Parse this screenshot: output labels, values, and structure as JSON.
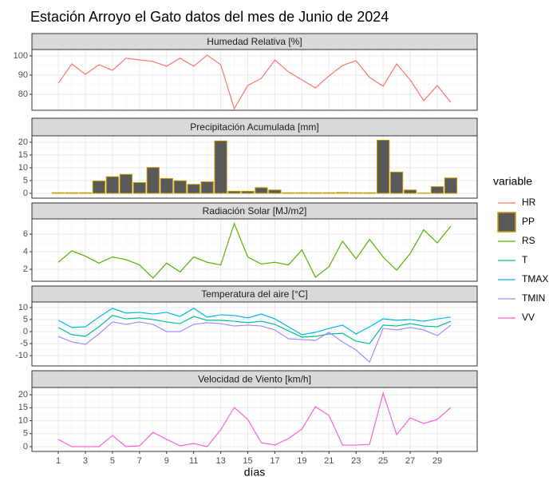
{
  "title": "Estación Arroyo el Gato datos del mes de Junio de 2024",
  "legend": {
    "title": "variable"
  },
  "chart_data": [
    {
      "type": "line",
      "title": "Humedad Relativa [%]",
      "x": [
        1,
        2,
        3,
        4,
        5,
        6,
        7,
        8,
        9,
        10,
        11,
        12,
        13,
        14,
        15,
        16,
        17,
        18,
        19,
        20,
        21,
        22,
        23,
        24,
        25,
        26,
        27,
        28,
        29,
        30
      ],
      "xlim": [
        -0.95,
        31.95
      ],
      "ylim": [
        71.7,
        103.3
      ],
      "yticks": [
        80,
        90,
        100
      ],
      "grid": true,
      "series": [
        {
          "name": "HR",
          "color": "#F8766D",
          "values": [
            85.8,
            95.8,
            90.4,
            95.4,
            92.5,
            98.8,
            97.9,
            97.1,
            94.6,
            98.8,
            94.6,
            100.4,
            95.4,
            72.5,
            84.6,
            88.3,
            97.9,
            91.7,
            87.5,
            83.3,
            89.6,
            95,
            97.5,
            88.8,
            84.2,
            95.8,
            87.5,
            76.7,
            84.6,
            75.8
          ]
        }
      ]
    },
    {
      "type": "bar",
      "title": "Precipitación Acumulada [mm]",
      "x": [
        1,
        2,
        3,
        4,
        5,
        6,
        7,
        8,
        9,
        10,
        11,
        12,
        13,
        14,
        15,
        16,
        17,
        18,
        19,
        20,
        21,
        22,
        23,
        24,
        25,
        26,
        27,
        28,
        29,
        30
      ],
      "xlim": [
        -0.95,
        31.95
      ],
      "ylim": [
        -1.9,
        22.5
      ],
      "yticks": [
        0,
        5,
        10,
        15,
        20
      ],
      "grid": true,
      "series": [
        {
          "name": "PP",
          "color": "#C49A00",
          "fill": "#595959",
          "values": [
            0.2,
            0.2,
            0.2,
            4.8,
            6.5,
            7.4,
            4.2,
            10.1,
            5.8,
            4.9,
            3.5,
            4.5,
            20.5,
            0.8,
            0.8,
            2.2,
            1.3,
            0.2,
            0.2,
            0.2,
            0.2,
            0.3,
            0.2,
            0.2,
            20.8,
            8.3,
            1.3,
            0.1,
            2.6,
            6.0
          ]
        }
      ]
    },
    {
      "type": "line",
      "title": "Radiación Solar [MJ/m2]",
      "x": [
        1,
        2,
        3,
        4,
        5,
        6,
        7,
        8,
        9,
        10,
        11,
        12,
        13,
        14,
        15,
        16,
        17,
        18,
        19,
        20,
        21,
        22,
        23,
        24,
        25,
        26,
        27,
        28,
        29,
        30
      ],
      "xlim": [
        -0.95,
        31.95
      ],
      "ylim": [
        0.64,
        7.73
      ],
      "yticks": [
        2,
        4,
        6
      ],
      "grid": true,
      "series": [
        {
          "name": "RS",
          "color": "#53B400",
          "values": [
            2.8,
            4.1,
            3.5,
            2.7,
            3.4,
            3.1,
            2.5,
            1.0,
            2.7,
            1.7,
            3.4,
            2.8,
            2.5,
            7.2,
            3.4,
            2.6,
            2.8,
            2.5,
            4.2,
            1.1,
            2.3,
            5.2,
            3.2,
            5.4,
            3.4,
            1.9,
            3.8,
            6.5,
            5.0,
            6.9
          ]
        }
      ]
    },
    {
      "type": "line",
      "title": "Temperatura del aire [°C]",
      "x": [
        1,
        2,
        3,
        4,
        5,
        6,
        7,
        8,
        9,
        10,
        11,
        12,
        13,
        14,
        15,
        16,
        17,
        18,
        19,
        20,
        21,
        22,
        23,
        24,
        25,
        26,
        27,
        28,
        29,
        30
      ],
      "xlim": [
        -0.95,
        31.95
      ],
      "ylim": [
        -14.3,
        12.3
      ],
      "yticks": [
        -10,
        -5,
        0,
        5,
        10
      ],
      "grid": true,
      "series": [
        {
          "name": "T",
          "color": "#00C094",
          "values": [
            1.7,
            -1.3,
            -2,
            2,
            6.7,
            5.3,
            5.7,
            5,
            4,
            3.3,
            6.3,
            4.7,
            4.7,
            4.3,
            3.7,
            4.3,
            3,
            0.3,
            -2.3,
            -2,
            -1,
            -0.7,
            -4,
            -5,
            2.7,
            2.3,
            3.3,
            2.3,
            2,
            4.3
          ]
        },
        {
          "name": "TMAX",
          "color": "#00B6EB",
          "values": [
            4.7,
            1.7,
            2,
            6,
            9.7,
            7.7,
            8,
            7.3,
            8,
            6.3,
            9.7,
            6,
            7,
            6.7,
            5.7,
            7.3,
            5.3,
            2,
            -1.3,
            -0.3,
            1.3,
            2.7,
            -1,
            2,
            5.3,
            4.7,
            5,
            4.3,
            5.3,
            6
          ]
        },
        {
          "name": "TMIN",
          "color": "#A58AFF",
          "values": [
            -2,
            -4.3,
            -5.3,
            -1,
            4,
            3,
            4,
            3,
            0,
            0,
            3,
            3.7,
            3.3,
            2.3,
            2.7,
            2.3,
            0.7,
            -3,
            -3.3,
            -3.7,
            -0.3,
            -4.3,
            -7.7,
            -12.7,
            1.3,
            0.7,
            1.7,
            0.7,
            -1.7,
            2.7
          ]
        }
      ]
    },
    {
      "type": "line",
      "title": "Velocidad de Viento [km/h]",
      "x": [
        1,
        2,
        3,
        4,
        5,
        6,
        7,
        8,
        9,
        10,
        11,
        12,
        13,
        14,
        15,
        16,
        17,
        18,
        19,
        20,
        21,
        22,
        23,
        24,
        25,
        26,
        27,
        28,
        29,
        30
      ],
      "xlim": [
        -0.95,
        31.95
      ],
      "ylim": [
        -1.85,
        22.8
      ],
      "yticks": [
        0,
        5,
        10,
        15,
        20
      ],
      "grid": true,
      "xticks": [
        1,
        3,
        5,
        7,
        9,
        11,
        13,
        15,
        17,
        19,
        21,
        23,
        25,
        27,
        29
      ],
      "xlabel": "días",
      "series": [
        {
          "name": "VV",
          "color": "#FB61D7",
          "values": [
            2.8,
            0,
            0,
            0,
            4.3,
            0,
            0.3,
            5.5,
            2.8,
            0.3,
            1.2,
            0,
            6.5,
            15.1,
            10.5,
            1.5,
            0.6,
            3.1,
            6.8,
            15.4,
            12,
            0.6,
            0.6,
            0.9,
            20.6,
            4.6,
            11.1,
            8.9,
            10.5,
            15.1
          ]
        }
      ]
    }
  ]
}
